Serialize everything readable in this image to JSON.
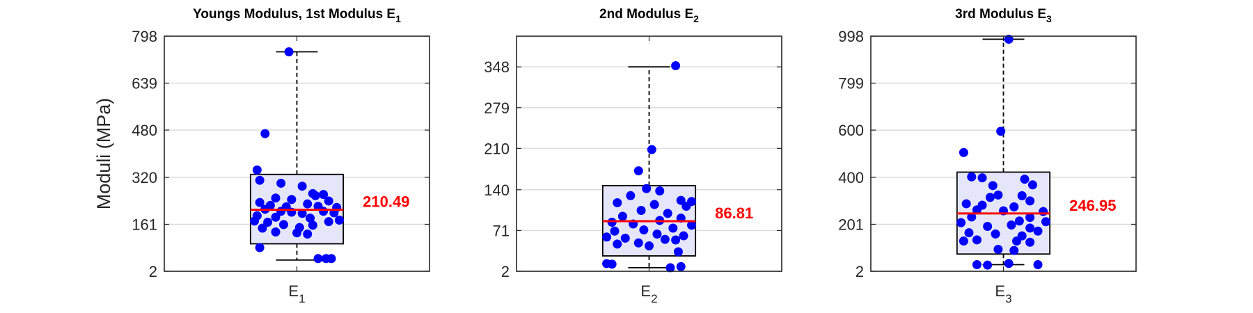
{
  "colors": {
    "box_fill": "#e6e6fa",
    "box_edge": "#000000",
    "median": "#ff0000",
    "points": "#0000ff",
    "grid": "#dcdcdc",
    "axes": "#262626"
  },
  "chart_data": [
    {
      "type": "box",
      "title": "Youngs Modulus, 1st Modulus E",
      "title_sub": "1",
      "ylabel": "Moduli (MPa)",
      "xlabel": "E",
      "xlabel_sub": "1",
      "ylim": [
        2,
        798
      ],
      "yticks": [
        2,
        161,
        320,
        480,
        639,
        798
      ],
      "grid": true,
      "box": {
        "q1": 95,
        "median": 210.49,
        "q3": 330,
        "whisker_low": 40,
        "whisker_high": 745
      },
      "median_label": "210.49",
      "points": [
        [
          -0.03,
          745
        ],
        [
          -0.12,
          468
        ],
        [
          -0.15,
          345
        ],
        [
          -0.14,
          310
        ],
        [
          -0.06,
          300
        ],
        [
          0.02,
          290
        ],
        [
          0.06,
          265
        ],
        [
          0.1,
          262
        ],
        [
          0.07,
          258
        ],
        [
          -0.08,
          250
        ],
        [
          -0.02,
          245
        ],
        [
          0.12,
          240
        ],
        [
          -0.14,
          235
        ],
        [
          -0.1,
          225
        ],
        [
          0.04,
          230
        ],
        [
          -0.04,
          220
        ],
        [
          0.08,
          222
        ],
        [
          0.15,
          218
        ],
        [
          -0.12,
          212
        ],
        [
          -0.06,
          205
        ],
        [
          -0.02,
          202
        ],
        [
          0.02,
          198
        ],
        [
          0.1,
          205
        ],
        [
          0.14,
          200
        ],
        [
          -0.15,
          190
        ],
        [
          -0.08,
          185
        ],
        [
          0.05,
          182
        ],
        [
          0.16,
          175
        ],
        [
          -0.16,
          172
        ],
        [
          -0.11,
          168
        ],
        [
          0.12,
          170
        ],
        [
          -0.05,
          160
        ],
        [
          0.06,
          158
        ],
        [
          -0.13,
          148
        ],
        [
          0.01,
          150
        ],
        [
          -0.08,
          135
        ],
        [
          0.0,
          132
        ],
        [
          0.04,
          128
        ],
        [
          -0.14,
          82
        ],
        [
          0.08,
          45
        ],
        [
          0.11,
          45
        ],
        [
          0.13,
          45
        ]
      ]
    },
    {
      "type": "box",
      "title": "2nd Modulus E",
      "title_sub": "2",
      "ylabel": "",
      "xlabel": "E",
      "xlabel_sub": "2",
      "ylim": [
        2,
        400
      ],
      "yticks": [
        2,
        71,
        140,
        210,
        279,
        348
      ],
      "grid": true,
      "box": {
        "q1": 28,
        "median": 86.81,
        "q3": 147,
        "whisker_low": 8,
        "whisker_high": 348
      },
      "median_label": "86.81",
      "points": [
        [
          0.1,
          350
        ],
        [
          0.01,
          208
        ],
        [
          -0.04,
          172
        ],
        [
          -0.01,
          142
        ],
        [
          0.04,
          138
        ],
        [
          -0.07,
          130
        ],
        [
          0.12,
          122
        ],
        [
          0.16,
          120
        ],
        [
          -0.12,
          118
        ],
        [
          0.02,
          115
        ],
        [
          0.14,
          112
        ],
        [
          -0.03,
          105
        ],
        [
          0.07,
          100
        ],
        [
          -0.1,
          95
        ],
        [
          0.12,
          92
        ],
        [
          0.04,
          88
        ],
        [
          -0.14,
          85
        ],
        [
          -0.06,
          82
        ],
        [
          0.16,
          80
        ],
        [
          0.09,
          75
        ],
        [
          -0.02,
          72
        ],
        [
          -0.13,
          70
        ],
        [
          0.03,
          65
        ],
        [
          0.13,
          62
        ],
        [
          -0.16,
          60
        ],
        [
          -0.09,
          58
        ],
        [
          0.06,
          56
        ],
        [
          0.1,
          55
        ],
        [
          -0.04,
          50
        ],
        [
          -0.12,
          48
        ],
        [
          0.0,
          45
        ],
        [
          0.11,
          35
        ],
        [
          -0.16,
          15
        ],
        [
          -0.14,
          14
        ],
        [
          0.08,
          8
        ],
        [
          0.12,
          10
        ]
      ]
    },
    {
      "type": "box",
      "title": "3rd Modulus E",
      "title_sub": "3",
      "ylabel": "",
      "xlabel": "E",
      "xlabel_sub": "3",
      "ylim": [
        2,
        998
      ],
      "yticks": [
        2,
        201,
        400,
        600,
        799,
        998
      ],
      "grid": true,
      "box": {
        "q1": 75,
        "median": 246.95,
        "q3": 422,
        "whisker_low": 30,
        "whisker_high": 985
      },
      "median_label": "246.95",
      "points": [
        [
          0.02,
          985
        ],
        [
          -0.01,
          595
        ],
        [
          -0.15,
          505
        ],
        [
          -0.12,
          402
        ],
        [
          -0.08,
          398
        ],
        [
          0.08,
          392
        ],
        [
          -0.04,
          365
        ],
        [
          0.11,
          368
        ],
        [
          -0.02,
          325
        ],
        [
          0.07,
          322
        ],
        [
          -0.05,
          315
        ],
        [
          0.1,
          300
        ],
        [
          -0.14,
          288
        ],
        [
          -0.08,
          282
        ],
        [
          0.04,
          275
        ],
        [
          -0.1,
          262
        ],
        [
          0.0,
          258
        ],
        [
          0.15,
          255
        ],
        [
          -0.12,
          232
        ],
        [
          0.1,
          230
        ],
        [
          0.06,
          215
        ],
        [
          -0.16,
          208
        ],
        [
          0.16,
          212
        ],
        [
          0.03,
          198
        ],
        [
          -0.06,
          192
        ],
        [
          0.1,
          185
        ],
        [
          -0.13,
          165
        ],
        [
          0.13,
          172
        ],
        [
          -0.03,
          160
        ],
        [
          0.07,
          152
        ],
        [
          -0.1,
          135
        ],
        [
          -0.15,
          130
        ],
        [
          0.05,
          130
        ],
        [
          0.1,
          125
        ],
        [
          -0.02,
          95
        ],
        [
          0.04,
          90
        ],
        [
          -0.1,
          30
        ],
        [
          -0.06,
          28
        ],
        [
          0.02,
          35
        ],
        [
          0.13,
          30
        ]
      ]
    }
  ]
}
